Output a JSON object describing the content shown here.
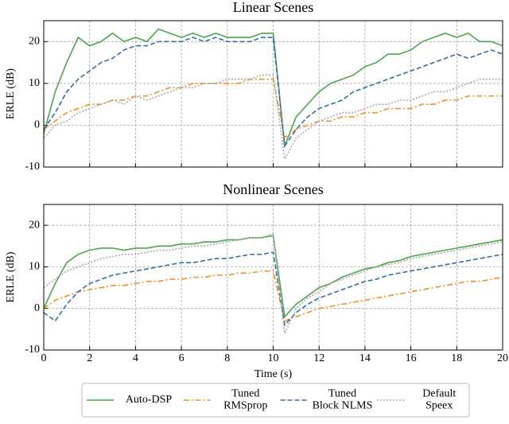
{
  "chart_data": [
    {
      "type": "line",
      "title": "Linear Scenes",
      "ylabel": "ERLE (dB)",
      "x": [
        0,
        0.5,
        1,
        1.5,
        2,
        2.5,
        3,
        3.5,
        4,
        4.5,
        5,
        5.5,
        6,
        6.5,
        7,
        7.5,
        8,
        8.5,
        9,
        9.5,
        10,
        10.5,
        11,
        11.5,
        12,
        12.5,
        13,
        13.5,
        14,
        14.5,
        15,
        15.5,
        16,
        16.5,
        17,
        17.5,
        18,
        18.5,
        19,
        19.5,
        20
      ],
      "xlim": [
        0,
        20
      ],
      "xticks": [
        0,
        2,
        4,
        6,
        8,
        10,
        12,
        14,
        16,
        18,
        20
      ],
      "ylim": [
        -10,
        25
      ],
      "yticks": [
        -10,
        0,
        10,
        20
      ],
      "grid": true,
      "series": [
        {
          "name": "Auto-DSP",
          "color": "#4aa84a",
          "linestyle": "solid",
          "values": [
            -2,
            8,
            15,
            21,
            19,
            20,
            22,
            20,
            21,
            20,
            23,
            22,
            21,
            22,
            21,
            22,
            21,
            21,
            21,
            22,
            22,
            -5,
            2,
            5,
            8,
            10,
            11,
            12,
            14,
            15,
            17,
            17,
            18,
            20,
            21,
            22,
            21,
            22,
            20,
            20,
            19
          ]
        },
        {
          "name": "Tuned\nRMSprop",
          "color": "#ff8c1a",
          "linestyle": "dashdot",
          "values": [
            -1,
            1,
            3,
            4,
            5,
            5,
            6,
            6,
            7,
            7,
            8,
            9,
            9,
            10,
            10,
            10,
            10,
            10,
            11,
            11,
            11,
            -3,
            -1,
            0,
            1,
            1,
            2,
            2,
            3,
            3,
            4,
            4,
            4,
            5,
            5,
            6,
            6,
            7,
            7,
            7,
            7
          ]
        },
        {
          "name": "Tuned\nBlock NLMS",
          "color": "#2f6db5",
          "linestyle": "dashed",
          "values": [
            -1,
            3,
            8,
            11,
            13,
            15,
            16,
            18,
            19,
            19,
            20,
            20,
            20,
            21,
            20,
            21,
            20,
            20,
            20,
            21,
            21,
            -5,
            -1,
            2,
            4,
            5,
            6,
            8,
            9,
            10,
            11,
            12,
            13,
            14,
            15,
            16,
            17,
            16,
            17,
            18,
            17
          ]
        },
        {
          "name": "Default\nSpeex",
          "color": "#a8a8a8",
          "linestyle": "dotted",
          "values": [
            -3,
            0,
            1,
            3,
            4,
            5,
            6,
            5,
            7,
            6,
            7,
            8,
            9,
            9,
            10,
            10,
            11,
            11,
            11,
            12,
            12,
            -8,
            -3,
            -1,
            1,
            2,
            3,
            3,
            4,
            5,
            5,
            6,
            6,
            7,
            8,
            8,
            9,
            10,
            11,
            11,
            11
          ]
        }
      ]
    },
    {
      "type": "line",
      "title": "Nonlinear Scenes",
      "ylabel": "ERLE (dB)",
      "xlabel": "Time (s)",
      "x": [
        0,
        0.5,
        1,
        1.5,
        2,
        2.5,
        3,
        3.5,
        4,
        4.5,
        5,
        5.5,
        6,
        6.5,
        7,
        7.5,
        8,
        8.5,
        9,
        9.5,
        10,
        10.5,
        11,
        11.5,
        12,
        12.5,
        13,
        13.5,
        14,
        14.5,
        15,
        15.5,
        16,
        16.5,
        17,
        17.5,
        18,
        18.5,
        19,
        19.5,
        20
      ],
      "xlim": [
        0,
        20
      ],
      "xticks": [
        0,
        2,
        4,
        6,
        8,
        10,
        12,
        14,
        16,
        18,
        20
      ],
      "ylim": [
        -10,
        25
      ],
      "yticks": [
        -10,
        0,
        10,
        20
      ],
      "grid": true,
      "series": [
        {
          "color": "#4aa84a",
          "linestyle": "solid",
          "values": [
            0,
            6,
            11,
            13,
            14,
            14.5,
            14.5,
            14,
            14.5,
            14.5,
            15,
            15,
            15.5,
            15.5,
            16,
            16,
            16.5,
            16.5,
            17,
            17,
            17.5,
            -2,
            1,
            3,
            5,
            6,
            7.5,
            8.5,
            9.5,
            10,
            11,
            11.5,
            12.5,
            13,
            13.5,
            14,
            14.5,
            15,
            15.5,
            16,
            16.5
          ]
        },
        {
          "color": "#ff8c1a",
          "linestyle": "dashdot",
          "values": [
            0,
            2,
            3,
            4,
            4.5,
            5,
            5.5,
            5.5,
            6,
            6.5,
            6.5,
            7,
            7,
            7.5,
            7.5,
            8,
            8,
            8.5,
            8.5,
            9,
            9,
            -3,
            -2,
            -1,
            0,
            0.5,
            1,
            1.5,
            2,
            2.5,
            3,
            3.5,
            4,
            4.5,
            5,
            5.5,
            6,
            6.5,
            6.5,
            7,
            7.5
          ]
        },
        {
          "color": "#2f6db5",
          "linestyle": "dashed",
          "values": [
            -1,
            -3,
            1,
            4,
            6,
            7,
            8,
            8.5,
            9,
            9.5,
            10,
            10.5,
            11,
            11,
            11.5,
            12,
            12,
            12.5,
            13,
            13,
            13.5,
            -4,
            -1,
            1,
            2.5,
            3.5,
            4.5,
            5.5,
            6.5,
            7,
            8,
            8.5,
            9,
            9.5,
            10,
            10.5,
            11,
            11.5,
            12,
            12.5,
            13
          ]
        },
        {
          "color": "#a8a8a8",
          "linestyle": "dotted",
          "values": [
            5,
            7,
            9,
            10,
            11,
            12,
            12.5,
            13,
            13,
            13.5,
            14,
            14,
            14.5,
            15,
            15,
            15.5,
            16,
            16.5,
            17,
            17,
            18,
            -6,
            0,
            2.5,
            4,
            6,
            7,
            8,
            9,
            10,
            10.5,
            11,
            12,
            12.5,
            13,
            13.5,
            14,
            14.5,
            15,
            15.5,
            16
          ]
        }
      ]
    }
  ]
}
